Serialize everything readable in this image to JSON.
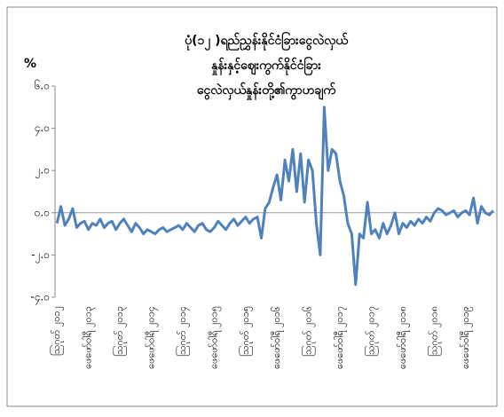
{
  "chart_data": {
    "type": "line",
    "title_lines": [
      "ပုံ(၁၂ )ရည်ညွှန်းနိုင်ငံခြားငွေလဲလှယ်",
      "နှုန်းနှင့်ဈေးကွက်နိုင်ငံခြား",
      "ငွေလဲလှယ်နှုန်းတို့၏ကွာဟချက်"
    ],
    "y_label": "%",
    "color": "#4f81bd",
    "ylim": [
      -4,
      6
    ],
    "yticks": [
      {
        "value": -4,
        "label": "-၄.၀"
      },
      {
        "value": -2,
        "label": "-၂.၀"
      },
      {
        "value": 0,
        "label": "၀.၀"
      },
      {
        "value": 2,
        "label": "၂.၀"
      },
      {
        "value": 4,
        "label": "၄.၀"
      },
      {
        "value": 6,
        "label": "၆.၀"
      }
    ],
    "categories": [
      "ဩဂုတ် ၂၀၁၂",
      null,
      null,
      null,
      null,
      null,
      null,
      null,
      "ဖေဖော်ဝါရီ ၂၀၁၃",
      null,
      null,
      null,
      null,
      null,
      null,
      null,
      "ဩဂုတ် ၂၀၁၃",
      null,
      null,
      null,
      null,
      null,
      null,
      null,
      "ဖေဖော်ဝါရီ ၂၀၁၄",
      null,
      null,
      null,
      null,
      null,
      null,
      null,
      "ဩဂုတ် ၂၀၁၄",
      null,
      null,
      null,
      null,
      null,
      null,
      null,
      "ဖေဖော်ဝါရီ ၂၀၁၅",
      null,
      null,
      null,
      null,
      null,
      null,
      null,
      "ဩဂုတ် ၂၀၁၅",
      null,
      null,
      null,
      null,
      null,
      null,
      null,
      "ဖေဖော်ဝါရီ ၂၀၁၆",
      null,
      null,
      null,
      null,
      null,
      null,
      null,
      "ဩဂုတ် ၂၀၁၆",
      null,
      null,
      null,
      null,
      null,
      null,
      null,
      "ဖေဖော်ဝါရီ ၂၀၁၇",
      null,
      null,
      null,
      null,
      null,
      null,
      null,
      "ဩဂုတ် ၂၀၁၇",
      null,
      null,
      null,
      null,
      null,
      null,
      null,
      "ဖေဖော်ဝါရီ ၂၀၁၈",
      null,
      null,
      null,
      null,
      null,
      null,
      null,
      "ဩဂုတ် ၂၀၁၈",
      null,
      null,
      null,
      null,
      null,
      null,
      null,
      "ဖေဖော်ဝါရီ ၂၀၁၉",
      null,
      null,
      null,
      null,
      null,
      null,
      null
    ],
    "values": [
      -0.5,
      0.3,
      -0.6,
      -0.3,
      0.2,
      -0.7,
      -0.5,
      -0.4,
      -0.8,
      -0.5,
      -0.6,
      -0.3,
      -0.7,
      -0.5,
      -0.4,
      -0.8,
      -0.5,
      -0.3,
      -0.6,
      -0.9,
      -0.5,
      -0.7,
      -1.0,
      -0.8,
      -0.9,
      -1.0,
      -0.8,
      -0.7,
      -0.9,
      -0.8,
      -0.7,
      -0.6,
      -0.8,
      -0.5,
      -0.7,
      -0.9,
      -0.6,
      -0.5,
      -0.8,
      -0.9,
      -0.7,
      -0.4,
      -0.6,
      -0.8,
      -0.5,
      -0.3,
      -0.6,
      -0.4,
      -0.2,
      -0.5,
      -0.3,
      -0.2,
      -1.2,
      0.2,
      0.5,
      1.2,
      1.8,
      0.6,
      2.5,
      1.5,
      3.0,
      1.0,
      2.8,
      0.5,
      2.5,
      2.0,
      -0.5,
      -2.0,
      5.0,
      2.0,
      3.0,
      2.8,
      1.5,
      0.8,
      -0.5,
      -1.0,
      -3.4,
      -1.0,
      -1.2,
      0.5,
      -1.0,
      -0.8,
      -1.2,
      -0.5,
      -1.0,
      -0.6,
      0.0,
      -1.0,
      -0.5,
      -0.7,
      -0.4,
      -0.6,
      -0.3,
      -0.5,
      -0.2,
      -0.4,
      0.0,
      0.2,
      0.1,
      -0.1,
      0.0,
      0.1,
      -0.2,
      0.0,
      0.1,
      -0.1,
      0.7,
      -0.5,
      0.3,
      0.0,
      -0.1,
      0.1
    ]
  }
}
